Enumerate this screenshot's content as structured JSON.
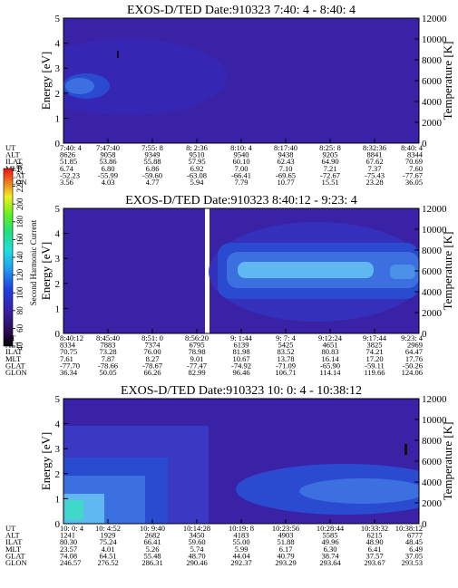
{
  "chart_data": [
    {
      "type": "heatmap",
      "title": "EXOS-D/TED   Date:910323  7:40: 4 - 8:40: 4",
      "ylabel": "Energy [eV]",
      "y2label": "Temperature [K]",
      "yticks": [
        "0",
        "1",
        "2",
        "3",
        "4",
        "5"
      ],
      "ylim": [
        0,
        5
      ],
      "y2ticks": [
        "0",
        "2000",
        "4000",
        "6000",
        "8000",
        "10000",
        "12000"
      ],
      "y2lim": [
        0,
        12000
      ],
      "ephemeris": {
        "labels": [
          "UT",
          "ALT",
          "ILAT",
          "MLT",
          "GLAT",
          "GLON"
        ],
        "columns": [
          [
            "7:40: 4",
            "8626",
            "51.85",
            "6.74",
            "-52.23",
            "3.56"
          ],
          [
            "7:47:40",
            "9058",
            "53.86",
            "6.80",
            "-55.99",
            "4.03"
          ],
          [
            "7:55: 8",
            "9349",
            "55.88",
            "6.86",
            "-59.60",
            "4.77"
          ],
          [
            "8: 2:36",
            "9510",
            "57.95",
            "6.92",
            "-63.08",
            "5.94"
          ],
          [
            "8:10: 4",
            "9540",
            "60.10",
            "7.00",
            "-66.41",
            "7.79"
          ],
          [
            "8:17:40",
            "9438",
            "62.43",
            "7.10",
            "-69.65",
            "10.77"
          ],
          [
            "8:25: 8",
            "9205",
            "64.90",
            "7.21",
            "-72.67",
            "15.51"
          ],
          [
            "8:32:36",
            "8841",
            "67.62",
            "7.37",
            "-75.43",
            "23.28"
          ],
          [
            "8:40: 4",
            "8344",
            "70.69",
            "7.60",
            "-77.67",
            "36.05"
          ]
        ]
      }
    },
    {
      "type": "heatmap",
      "title": "EXOS-D/TED   Date:910323  8:40:12 - 9:23: 4",
      "ylabel": "Energy [eV]",
      "y2label": "Temperature [K]",
      "yticks": [
        "0",
        "1",
        "2",
        "3",
        "4",
        "5"
      ],
      "ylim": [
        0,
        5
      ],
      "y2ticks": [
        "0",
        "2000",
        "4000",
        "6000",
        "8000",
        "10000",
        "12000"
      ],
      "y2lim": [
        0,
        12000
      ],
      "ephemeris": {
        "labels": [
          "UT",
          "ALT",
          "ILAT",
          "MLT",
          "GLAT",
          "GLON"
        ],
        "columns": [
          [
            "8:40:12",
            "8334",
            "70.75",
            "7.61",
            "-77.70",
            "36.34"
          ],
          [
            "8:45:40",
            "7883",
            "73.28",
            "7.87",
            "-78.66",
            "50.05"
          ],
          [
            "8:51: 0",
            "7374",
            "76.00",
            "8.27",
            "-78.67",
            "66.26"
          ],
          [
            "8:56:20",
            "6795",
            "78.98",
            "9.01",
            "-77.47",
            "82.99"
          ],
          [
            "9: 1:44",
            "6139",
            "81.98",
            "10.67",
            "-74.92",
            "96.46"
          ],
          [
            "9: 7: 4",
            "5425",
            "83.52",
            "13.78",
            "-71.09",
            "106.71"
          ],
          [
            "9:12:24",
            "4651",
            "80.83",
            "16.14",
            "-65.90",
            "114.14"
          ],
          [
            "9:17:44",
            "3825",
            "74.21",
            "17.20",
            "-59.11",
            "119.66"
          ],
          [
            "9:23: 4",
            "2969",
            "64.47",
            "17.76",
            "-50.26",
            "124.06"
          ]
        ]
      }
    },
    {
      "type": "heatmap",
      "title": "EXOS-D/TED   Date:910323  10: 0: 4 - 10:38:12",
      "ylabel": "Energy [eV]",
      "y2label": "Temperature [K]",
      "yticks": [
        "0",
        "1",
        "2",
        "3",
        "4",
        "5"
      ],
      "ylim": [
        0,
        5
      ],
      "y2ticks": [
        "0",
        "2000",
        "4000",
        "6000",
        "8000",
        "10000",
        "12000"
      ],
      "y2lim": [
        0,
        12000
      ],
      "ephemeris": {
        "labels": [
          "UT",
          "ALT",
          "ILAT",
          "MLT",
          "GLAT",
          "GLON"
        ],
        "columns": [
          [
            "10: 0: 4",
            "1241",
            "80.30",
            "23.57",
            "74.08",
            "246.57"
          ],
          [
            "10: 4:52",
            "1929",
            "75.24",
            "4.01",
            "64.51",
            "276.52"
          ],
          [
            "10: 9:40",
            "2682",
            "66.41",
            "5.26",
            "55.48",
            "286.31"
          ],
          [
            "10:14:28",
            "3450",
            "59.60",
            "5.74",
            "48.70",
            "290.46"
          ],
          [
            "10:19: 8",
            "4183",
            "55.00",
            "5.99",
            "44.04",
            "292.37"
          ],
          [
            "10:23:56",
            "4903",
            "51.88",
            "6.17",
            "40.79",
            "293.29"
          ],
          [
            "10:28:44",
            "5585",
            "49.96",
            "6.30",
            "38.74",
            "293.64"
          ],
          [
            "10:33:32",
            "6215",
            "48.90",
            "6.41",
            "37.57",
            "293.67"
          ],
          [
            "10:38:12",
            "6777",
            "48.45",
            "6.49",
            "37.05",
            "293.53"
          ]
        ]
      }
    }
  ],
  "colorbar": {
    "label": "Second Harmonic Current",
    "ticks": [
      "40",
      "60",
      "80",
      "100",
      "120",
      "140",
      "160",
      "180",
      "200",
      "220",
      "240"
    ]
  },
  "colors": {
    "background": "#3a22a6",
    "band_light": "#3c6fe0",
    "band_mid": "#2a4bd0",
    "band_bright": "#5fb8f0"
  }
}
